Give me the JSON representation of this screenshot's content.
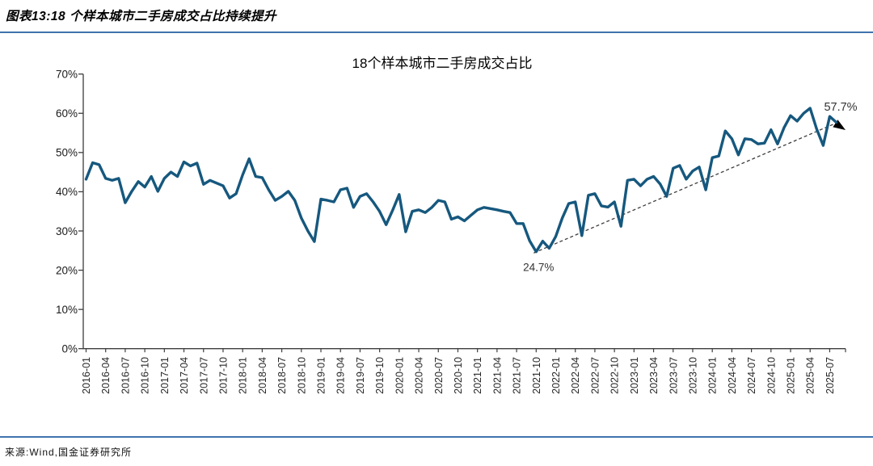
{
  "header": {
    "figure_label": "图表13:18 个样本城市二手房成交占比持续提升"
  },
  "footer": {
    "source": "来源:Wind,国金证券研究所"
  },
  "chart_data": {
    "type": "line",
    "title": "18个样本城市二手房成交占比",
    "series_name": "二手房成交占比",
    "frequency": "monthly",
    "x_start": "2016-01",
    "x_end": "2025-08",
    "ylim": [
      0,
      70
    ],
    "y_tick_labels": [
      "0%",
      "10%",
      "20%",
      "30%",
      "40%",
      "50%",
      "60%",
      "70%"
    ],
    "x_tick_labels": [
      "2016-01",
      "2016-04",
      "2016-07",
      "2016-10",
      "2017-01",
      "2017-04",
      "2017-07",
      "2017-10",
      "2018-01",
      "2018-04",
      "2018-07",
      "2018-10",
      "2019-01",
      "2019-04",
      "2019-07",
      "2019-10",
      "2020-01",
      "2020-04",
      "2020-07",
      "2020-10",
      "2021-01",
      "2021-04",
      "2021-07",
      "2021-10",
      "2022-01",
      "2022-04",
      "2022-07",
      "2022-10",
      "2023-01",
      "2023-04",
      "2023-07",
      "2023-10",
      "2024-01",
      "2024-04",
      "2024-07",
      "2024-10",
      "2025-01",
      "2025-04",
      "2025-07"
    ],
    "values_by_year": {
      "2016": [
        43.2,
        47.4,
        46.9,
        43.4,
        42.9,
        43.4,
        37.2,
        40.1,
        42.6,
        41.2,
        43.9,
        40.1
      ],
      "2017": [
        43.4,
        45.0,
        43.9,
        47.6,
        46.6,
        47.3,
        41.9,
        42.9,
        42.2,
        41.5,
        38.4,
        39.5
      ],
      "2018": [
        44.3,
        48.4,
        43.9,
        43.6,
        40.5,
        37.8,
        38.8,
        40.1,
        37.8,
        33.3,
        30.0,
        27.3
      ],
      "2019": [
        38.1,
        37.8,
        37.4,
        40.5,
        40.9,
        36.0,
        38.8,
        39.5,
        37.4,
        35.0,
        31.6,
        35.3
      ],
      "2020": [
        39.3,
        29.8,
        35.0,
        35.4,
        34.7,
        36.0,
        37.8,
        37.4,
        33.0,
        33.6,
        32.6,
        34.0
      ],
      "2021": [
        35.4,
        36.0,
        35.7,
        35.4,
        35.0,
        34.7,
        31.9,
        31.9,
        27.5,
        24.7,
        27.4,
        25.6
      ],
      "2022": [
        28.6,
        33.3,
        37.0,
        37.4,
        28.8,
        39.1,
        39.5,
        36.4,
        36.1,
        37.4,
        31.2,
        42.9
      ],
      "2023": [
        43.2,
        41.5,
        43.2,
        43.9,
        42.0,
        38.8,
        46.0,
        46.7,
        43.2,
        45.3,
        46.3,
        40.5
      ],
      "2024": [
        48.7,
        49.1,
        55.5,
        53.5,
        49.4,
        53.5,
        53.3,
        52.2,
        52.4,
        55.8,
        52.2,
        56.3
      ],
      "2025": [
        59.4,
        58.0,
        60.0,
        61.3,
        56.0,
        51.8,
        59.2,
        57.7
      ]
    },
    "annotations": [
      {
        "text": "24.7%",
        "point": "2021-10",
        "value": 24.7
      },
      {
        "text": "57.7%",
        "point": "2025-08",
        "value": 57.7
      }
    ],
    "trend_line": {
      "style": "dashed",
      "from": "2021-10",
      "to": "2025-08",
      "arrow": true
    },
    "legend": "none",
    "grid": "off",
    "colors": {
      "line": "#16587e",
      "axis": "#3d3d3d",
      "tick_label": "#1a1a1a",
      "annotation": "#333333",
      "trend": "#3d3d3d",
      "arrow": "#000000",
      "rule": "#3f73ad"
    }
  }
}
